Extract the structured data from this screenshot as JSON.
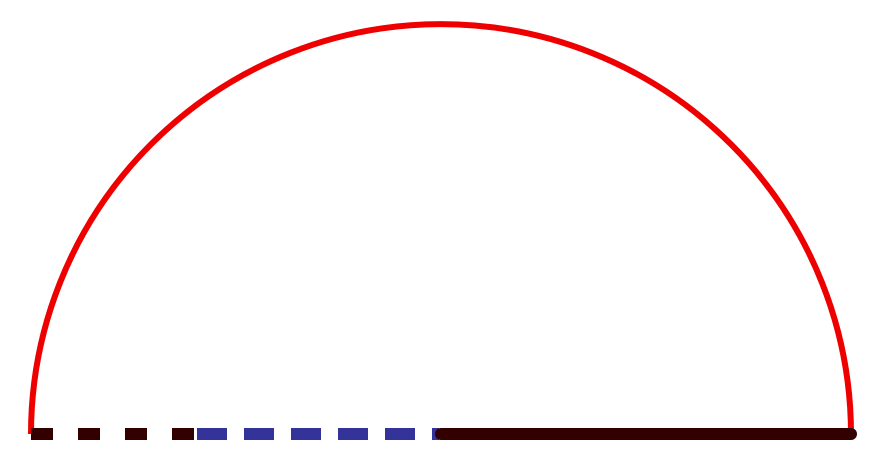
{
  "diagram": {
    "shapes": [
      {
        "kind": "semicircle-arc",
        "stroke": "#ee0000",
        "style": "solid"
      },
      {
        "kind": "segment",
        "stroke": "#330000",
        "style": "dashed"
      },
      {
        "kind": "segment",
        "stroke": "#333399",
        "style": "dashed"
      },
      {
        "kind": "segment",
        "stroke": "#330000",
        "style": "solid"
      }
    ]
  }
}
